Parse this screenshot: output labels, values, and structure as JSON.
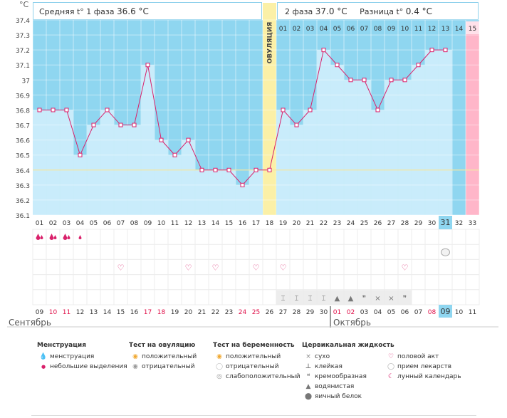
{
  "unit_label": "°C",
  "header": {
    "phase1_label": "Средняя t° 1 фаза",
    "phase1_value": "36.6 °C",
    "phase2_label": "2 фаза",
    "phase2_value": "37.0 °C",
    "diff_label": "Разница t°",
    "diff_value": "0.4 °C"
  },
  "ovulation_label": "ОВУЛЯЦИЯ",
  "months": {
    "first": "Сентябрь",
    "second": "Октябрь"
  },
  "colors": {
    "chart_bg": "#8fd6f0",
    "bar_fill": "#c9ecfb",
    "line": "#d9216b",
    "ovulation": "#fbf0a7",
    "day15": "#ffb6c9",
    "highlight": "#8fd6f0",
    "red_date": "#e0114a"
  },
  "chart_data": {
    "type": "line",
    "title": "",
    "ylabel": "°C",
    "ylim": [
      36.1,
      37.4
    ],
    "y_ticks": [
      "36.1",
      "36.2",
      "36.3",
      "36.4",
      "36.5",
      "36.6",
      "36.7",
      "36.8",
      "36.9",
      "37",
      "37.1",
      "37.2",
      "37.3",
      "37.4"
    ],
    "cycle_days": [
      "01",
      "02",
      "03",
      "04",
      "05",
      "06",
      "07",
      "08",
      "09",
      "10",
      "11",
      "12",
      "13",
      "14",
      "15",
      "16",
      "17",
      "18",
      "19",
      "20",
      "21",
      "22",
      "23",
      "24",
      "25",
      "26",
      "27",
      "28",
      "29",
      "30",
      "31",
      "32",
      "33"
    ],
    "calendar_dates": [
      "09",
      "10",
      "11",
      "12",
      "13",
      "14",
      "15",
      "16",
      "17",
      "18",
      "19",
      "20",
      "21",
      "22",
      "23",
      "24",
      "25",
      "26",
      "27",
      "28",
      "29",
      "30",
      "01",
      "02",
      "03",
      "04",
      "05",
      "06",
      "07",
      "08",
      "09",
      "10",
      "11"
    ],
    "red_dates": [
      false,
      true,
      true,
      false,
      false,
      false,
      false,
      false,
      true,
      true,
      false,
      false,
      false,
      false,
      false,
      true,
      true,
      false,
      false,
      false,
      false,
      false,
      true,
      true,
      false,
      false,
      false,
      false,
      false,
      true,
      false,
      false,
      false
    ],
    "temperature": [
      36.8,
      36.8,
      36.8,
      36.5,
      36.7,
      36.8,
      36.7,
      36.7,
      37.1,
      36.6,
      36.5,
      36.6,
      36.4,
      36.4,
      36.4,
      36.3,
      36.4,
      36.4,
      36.8,
      36.7,
      36.8,
      37.2,
      37.1,
      37.0,
      37.0,
      36.8,
      37.0,
      37.0,
      37.1,
      37.2,
      37.2,
      null,
      null
    ],
    "coverline": 36.4,
    "ovulation_day": 18,
    "phase2_day_numbers": [
      "01",
      "02",
      "03",
      "04",
      "05",
      "06",
      "07",
      "08",
      "09",
      "10",
      "11",
      "12",
      "13",
      "14",
      "15"
    ],
    "highlight_day": 31,
    "menstruation": {
      "heavy_days": [
        1,
        2,
        3
      ],
      "light_days": [
        4
      ]
    },
    "intercourse_days": [
      7,
      12,
      14,
      17,
      19,
      28
    ],
    "medication_days": [
      31
    ],
    "cervical_fluid": [
      "sticky",
      "sticky",
      "sticky",
      "sticky",
      "watery",
      "watery",
      "creamy",
      "dry",
      "dry",
      "creamy"
    ]
  },
  "legend": {
    "menstruation": {
      "title": "Менструация",
      "items": [
        "менструация",
        "небольшие выделения"
      ]
    },
    "ovulation_test": {
      "title": "Тест на овуляцию",
      "items": [
        "положительный",
        "отрицательный"
      ]
    },
    "pregnancy_test": {
      "title": "Тест на беременность",
      "items": [
        "положительный",
        "отрицательный",
        "слабоположительный"
      ]
    },
    "cervical": {
      "title": "Цервикальная жидкость",
      "items": [
        "сухо",
        "клейкая",
        "кремообразная",
        "водянистая",
        "яичный белок"
      ]
    },
    "other": {
      "items": [
        "половой акт",
        "прием лекарств",
        "лунный календарь"
      ]
    }
  }
}
